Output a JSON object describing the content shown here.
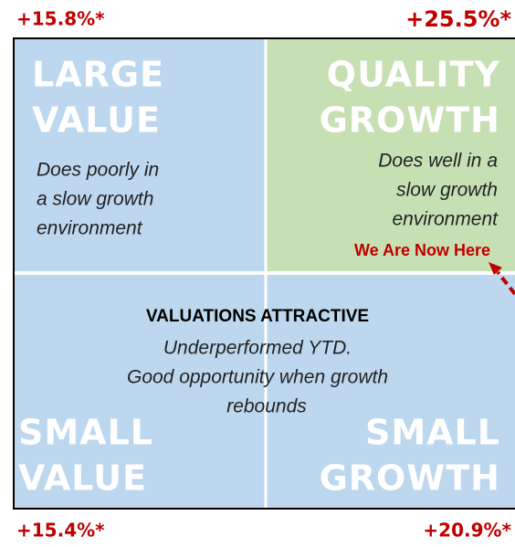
{
  "corners": {
    "top_left": "+15.8%*",
    "top_right": "+25.5%*",
    "bottom_left": "+15.4%*",
    "bottom_right": "+20.9%*"
  },
  "quadrants": {
    "large_value": {
      "title": [
        "LARGE",
        "VALUE"
      ],
      "description": [
        "Does poorly in",
        "a slow growth",
        "environment"
      ]
    },
    "quality_growth": {
      "title": [
        "QUALITY",
        "GROWTH"
      ],
      "description": [
        "Does well in a",
        "slow growth",
        "environment"
      ],
      "marker": "We Are Now Here"
    },
    "small_value": {
      "title": [
        "SMALL",
        "VALUE"
      ]
    },
    "small_growth": {
      "title": [
        "SMALL",
        "GROWTH"
      ]
    }
  },
  "center_note": {
    "heading": "VALUATIONS ATTRACTIVE",
    "lines": [
      "Underperformed YTD.",
      "Good opportunity when growth",
      "rebounds"
    ]
  }
}
